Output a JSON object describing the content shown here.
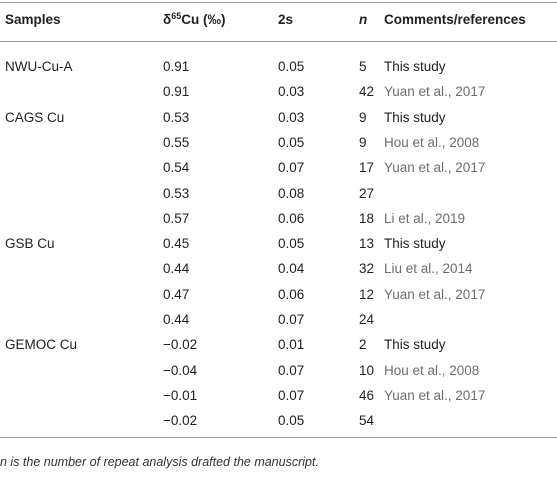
{
  "header": {
    "samples": "Samples",
    "delta": {
      "symbol": "δ",
      "sup": "65",
      "rest": "Cu (‰)"
    },
    "s2": "2s",
    "n": "n",
    "ref": "Comments/references"
  },
  "rows": [
    {
      "sample": "NWU-Cu-A",
      "delta": "0.91",
      "s2": "0.05",
      "n": "5",
      "ref": "This study",
      "ref_color": "#222222"
    },
    {
      "delta": "0.91",
      "s2": "0.03",
      "n": "42",
      "ref": "Yuan et al., 2017",
      "ref_color": "#6e6e6e"
    },
    {
      "sample": "CAGS Cu",
      "delta": "0.53",
      "s2": "0.03",
      "n": "9",
      "ref": "This study",
      "ref_color": "#222222"
    },
    {
      "delta": "0.55",
      "s2": "0.05",
      "n": "9",
      "ref": "Hou et al., 2008",
      "ref_color": "#6e6e6e"
    },
    {
      "delta": "0.54",
      "s2": "0.07",
      "n": "17",
      "ref": "Yuan et al., 2017",
      "ref_color": "#6e6e6e"
    },
    {
      "delta": "0.53",
      "s2": "0.08",
      "n": "27"
    },
    {
      "delta": "0.57",
      "s2": "0.06",
      "n": "18",
      "ref": "Li et al., 2019",
      "ref_color": "#6e6e6e"
    },
    {
      "sample": "GSB Cu",
      "delta": "0.45",
      "s2": "0.05",
      "n": "13",
      "ref": "This study",
      "ref_color": "#222222"
    },
    {
      "delta": "0.44",
      "s2": "0.04",
      "n": "32",
      "ref": "Liu et al., 2014",
      "ref_color": "#6e6e6e"
    },
    {
      "delta": "0.47",
      "s2": "0.06",
      "n": "12",
      "ref": "Yuan et al., 2017",
      "ref_color": "#6e6e6e"
    },
    {
      "delta": "0.44",
      "s2": "0.07",
      "n": "24"
    },
    {
      "sample": "GEMOC Cu",
      "delta": "−0.02",
      "s2": "0.01",
      "n": "2",
      "ref": "This study",
      "ref_color": "#222222"
    },
    {
      "delta": "−0.04",
      "s2": "0.07",
      "n": "10",
      "ref": "Hou et al., 2008",
      "ref_color": "#6e6e6e"
    },
    {
      "delta": "−0.01",
      "s2": "0.07",
      "n": "46",
      "ref": "Yuan et al., 2017",
      "ref_color": "#6e6e6e"
    },
    {
      "delta": "−0.02",
      "s2": "0.05",
      "n": "54"
    }
  ],
  "footnote": {
    "n": "n",
    "text": " is the number of repeat analysis drafted the manuscript."
  }
}
